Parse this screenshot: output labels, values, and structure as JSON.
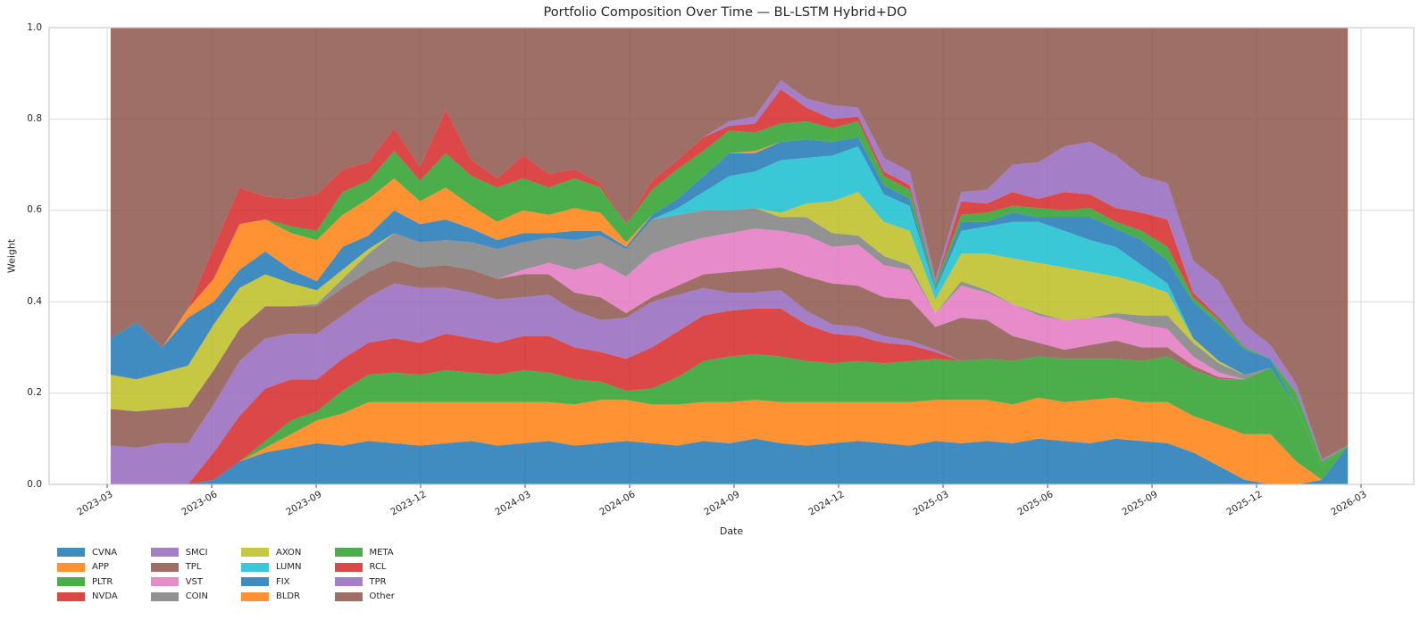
{
  "title": "Portfolio Composition Over Time — BL-LSTM Hybrid+DO",
  "axes": {
    "xlabel": "Date",
    "ylabel": "Weight",
    "y_ticks": [
      {
        "label": "0.0",
        "value": 0.0
      },
      {
        "label": "0.2",
        "value": 0.2
      },
      {
        "label": "0.4",
        "value": 0.4
      },
      {
        "label": "0.6",
        "value": 0.6
      },
      {
        "label": "0.8",
        "value": 0.8
      },
      {
        "label": "1.0",
        "value": 1.0
      }
    ],
    "x_ticks": [
      {
        "label": "2023-03",
        "month": 0
      },
      {
        "label": "2023-06",
        "month": 3
      },
      {
        "label": "2023-09",
        "month": 6
      },
      {
        "label": "2023-12",
        "month": 9
      },
      {
        "label": "2024-03",
        "month": 12
      },
      {
        "label": "2024-06",
        "month": 15
      },
      {
        "label": "2024-09",
        "month": 18
      },
      {
        "label": "2024-12",
        "month": 21
      },
      {
        "label": "2025-03",
        "month": 24
      },
      {
        "label": "2025-06",
        "month": 27
      },
      {
        "label": "2025-09",
        "month": 30
      },
      {
        "label": "2025-12",
        "month": 33
      },
      {
        "label": "2026-03",
        "month": 36
      }
    ],
    "grid_color": "#d9d9d9",
    "spine_color": "#cccccc",
    "text_color": "#262626"
  },
  "chart_data": {
    "type": "area",
    "stacked": true,
    "normalized_to_one": true,
    "ylim": [
      0,
      1
    ],
    "x_unit": "months since 2023-03",
    "fill_alpha": 0.85,
    "x": [
      0.1,
      0.84,
      1.58,
      2.32,
      3.06,
      3.8,
      4.54,
      5.28,
      6.02,
      6.76,
      7.5,
      8.24,
      8.98,
      9.72,
      10.46,
      11.2,
      11.94,
      12.68,
      13.42,
      14.16,
      14.9,
      15.64,
      16.38,
      17.12,
      17.86,
      18.6,
      19.34,
      20.08,
      20.82,
      21.56,
      22.3,
      23.04,
      23.78,
      24.52,
      25.26,
      26.0,
      26.74,
      27.48,
      28.22,
      28.96,
      29.7,
      30.44,
      31.18,
      31.92,
      32.66,
      33.4,
      34.14,
      34.88,
      35.62
    ],
    "series": [
      {
        "name": "CVNA",
        "color": "#1f77b4",
        "values": [
          0,
          0,
          0,
          0,
          0.01,
          0.05,
          0.07,
          0.08,
          0.09,
          0.085,
          0.095,
          0.09,
          0.085,
          0.09,
          0.095,
          0.085,
          0.09,
          0.095,
          0.085,
          0.09,
          0.095,
          0.09,
          0.085,
          0.095,
          0.09,
          0.1,
          0.09,
          0.085,
          0.09,
          0.095,
          0.09,
          0.085,
          0.095,
          0.09,
          0.095,
          0.09,
          0.1,
          0.095,
          0.09,
          0.1,
          0.095,
          0.09,
          0.07,
          0.04,
          0.01,
          0,
          0,
          0.01,
          0.085
        ]
      },
      {
        "name": "APP",
        "color": "#ff7f0e",
        "values": [
          0,
          0,
          0,
          0,
          0,
          0,
          0.01,
          0.03,
          0.05,
          0.07,
          0.085,
          0.09,
          0.095,
          0.09,
          0.085,
          0.095,
          0.09,
          0.085,
          0.09,
          0.095,
          0.09,
          0.085,
          0.09,
          0.085,
          0.09,
          0.085,
          0.09,
          0.095,
          0.09,
          0.085,
          0.09,
          0.095,
          0.09,
          0.095,
          0.09,
          0.085,
          0.09,
          0.085,
          0.095,
          0.09,
          0.085,
          0.09,
          0.08,
          0.09,
          0.1,
          0.11,
          0.05,
          0,
          0
        ]
      },
      {
        "name": "PLTR",
        "color": "#2ca02c",
        "values": [
          0,
          0,
          0,
          0,
          0,
          0,
          0.015,
          0.03,
          0.02,
          0.05,
          0.06,
          0.065,
          0.06,
          0.07,
          0.065,
          0.06,
          0.07,
          0.065,
          0.055,
          0.04,
          0.02,
          0.035,
          0.06,
          0.09,
          0.1,
          0.1,
          0.1,
          0.09,
          0.085,
          0.09,
          0.085,
          0.09,
          0.09,
          0.085,
          0.09,
          0.095,
          0.09,
          0.095,
          0.09,
          0.085,
          0.09,
          0.1,
          0.1,
          0.1,
          0.12,
          0.145,
          0.12,
          0.03,
          0
        ]
      },
      {
        "name": "NVDA",
        "color": "#d62728",
        "values": [
          0,
          0,
          0,
          0,
          0.06,
          0.1,
          0.115,
          0.09,
          0.07,
          0.07,
          0.07,
          0.075,
          0.07,
          0.08,
          0.075,
          0.07,
          0.075,
          0.08,
          0.07,
          0.065,
          0.07,
          0.09,
          0.1,
          0.1,
          0.1,
          0.1,
          0.105,
          0.08,
          0.065,
          0.055,
          0.045,
          0.035,
          0.015,
          0,
          0,
          0,
          0,
          0,
          0,
          0,
          0,
          0,
          0,
          0,
          0,
          0,
          0,
          0,
          0
        ]
      },
      {
        "name": "SMCI",
        "color": "#9467bd",
        "values": [
          0.085,
          0.08,
          0.09,
          0.09,
          0.105,
          0.12,
          0.11,
          0.1,
          0.1,
          0.095,
          0.1,
          0.12,
          0.12,
          0.1,
          0.1,
          0.095,
          0.085,
          0.09,
          0.08,
          0.07,
          0.09,
          0.1,
          0.08,
          0.06,
          0.04,
          0.035,
          0.04,
          0.03,
          0.02,
          0.02,
          0.015,
          0.01,
          0.005,
          0,
          0,
          0,
          0,
          0,
          0,
          0,
          0,
          0,
          0,
          0,
          0,
          0,
          0,
          0,
          0
        ]
      },
      {
        "name": "TPL",
        "color": "#8c564b",
        "values": [
          0.08,
          0.08,
          0.075,
          0.08,
          0.075,
          0.07,
          0.07,
          0.06,
          0.06,
          0.06,
          0.055,
          0.05,
          0.045,
          0.05,
          0.05,
          0.045,
          0.05,
          0.045,
          0.04,
          0.05,
          0.01,
          0.01,
          0.02,
          0.03,
          0.045,
          0.05,
          0.05,
          0.075,
          0.09,
          0.09,
          0.085,
          0.09,
          0.05,
          0.095,
          0.085,
          0.055,
          0.03,
          0.02,
          0.03,
          0.04,
          0.03,
          0.02,
          0.01,
          0.005,
          0,
          0,
          0,
          0,
          0
        ]
      },
      {
        "name": "VST",
        "color": "#e377c2",
        "values": [
          0,
          0,
          0,
          0,
          0,
          0,
          0,
          0,
          0,
          0,
          0,
          0,
          0,
          0,
          0,
          0,
          0.01,
          0.025,
          0.05,
          0.075,
          0.08,
          0.095,
          0.09,
          0.08,
          0.085,
          0.09,
          0.08,
          0.09,
          0.08,
          0.09,
          0.07,
          0.065,
          0.03,
          0.07,
          0.06,
          0.07,
          0.06,
          0.065,
          0.06,
          0.05,
          0.05,
          0.04,
          0.02,
          0.01,
          0,
          0,
          0,
          0,
          0
        ]
      },
      {
        "name": "COIN",
        "color": "#7f7f7f",
        "values": [
          0,
          0,
          0,
          0,
          0,
          0,
          0,
          0,
          0.005,
          0.02,
          0.04,
          0.06,
          0.055,
          0.055,
          0.06,
          0.065,
          0.06,
          0.055,
          0.065,
          0.06,
          0.06,
          0.075,
          0.065,
          0.06,
          0.05,
          0.045,
          0.03,
          0.04,
          0.03,
          0.02,
          0.02,
          0.01,
          0,
          0.01,
          0.005,
          0,
          0.005,
          0,
          0,
          0.01,
          0.02,
          0.03,
          0.03,
          0.02,
          0.01,
          0,
          0,
          0,
          0
        ]
      },
      {
        "name": "AXON",
        "color": "#bcbd22",
        "values": [
          0.075,
          0.07,
          0.08,
          0.09,
          0.1,
          0.09,
          0.07,
          0.05,
          0.03,
          0.02,
          0.01,
          0,
          0,
          0,
          0,
          0,
          0,
          0,
          0,
          0,
          0,
          0,
          0,
          0,
          0,
          0,
          0.01,
          0.03,
          0.07,
          0.095,
          0.075,
          0.075,
          0.03,
          0.06,
          0.08,
          0.1,
          0.11,
          0.115,
          0.1,
          0.08,
          0.07,
          0.05,
          0.01,
          0.005,
          0,
          0,
          0,
          0,
          0
        ]
      },
      {
        "name": "LUMN",
        "color": "#17becf",
        "values": [
          0,
          0,
          0,
          0,
          0,
          0,
          0,
          0,
          0,
          0,
          0,
          0,
          0,
          0,
          0,
          0,
          0,
          0,
          0,
          0,
          0,
          0,
          0.015,
          0.04,
          0.075,
          0.08,
          0.115,
          0.1,
          0.1,
          0.1,
          0.06,
          0.055,
          0.02,
          0.05,
          0.06,
          0.08,
          0.09,
          0.08,
          0.07,
          0.065,
          0.04,
          0.02,
          0,
          0,
          0,
          0,
          0,
          0,
          0
        ]
      },
      {
        "name": "FIX",
        "color": "#1f77b4",
        "values": [
          0.08,
          0.125,
          0.055,
          0.105,
          0.05,
          0.04,
          0.05,
          0.03,
          0.02,
          0.05,
          0.03,
          0.05,
          0.04,
          0.045,
          0.03,
          0.02,
          0.02,
          0.01,
          0.02,
          0.01,
          0.005,
          0.01,
          0.02,
          0.035,
          0.05,
          0.04,
          0.04,
          0.04,
          0.03,
          0.02,
          0.02,
          0.015,
          0.005,
          0.02,
          0.01,
          0.02,
          0.01,
          0.03,
          0.05,
          0.04,
          0.055,
          0.05,
          0.08,
          0.08,
          0.055,
          0.02,
          0,
          0,
          0
        ]
      },
      {
        "name": "BLDR",
        "color": "#ff7f0e",
        "values": [
          0,
          0,
          0,
          0.02,
          0.05,
          0.1,
          0.07,
          0.08,
          0.09,
          0.07,
          0.08,
          0.07,
          0.05,
          0.07,
          0.05,
          0.04,
          0.05,
          0.04,
          0.05,
          0.04,
          0.01,
          0,
          0,
          0,
          0,
          0.005,
          0,
          0,
          0,
          0,
          0,
          0,
          0,
          0,
          0,
          0,
          0,
          0,
          0,
          0,
          0,
          0,
          0,
          0,
          0,
          0,
          0,
          0,
          0
        ]
      },
      {
        "name": "META",
        "color": "#2ca02c",
        "values": [
          0,
          0,
          0,
          0,
          0,
          0,
          0,
          0.015,
          0.02,
          0.05,
          0.04,
          0.06,
          0.045,
          0.075,
          0.065,
          0.075,
          0.07,
          0.06,
          0.065,
          0.055,
          0.04,
          0.055,
          0.065,
          0.055,
          0.05,
          0.04,
          0.04,
          0.04,
          0.03,
          0.035,
          0.02,
          0.02,
          0.01,
          0.015,
          0.02,
          0.015,
          0.02,
          0.015,
          0.02,
          0.015,
          0.02,
          0.03,
          0.01,
          0.01,
          0.005,
          0,
          0.03,
          0.01,
          0
        ]
      },
      {
        "name": "RCL",
        "color": "#d62728",
        "values": [
          0,
          0,
          0,
          0,
          0.07,
          0.08,
          0.05,
          0.06,
          0.08,
          0.05,
          0.04,
          0.05,
          0.03,
          0.095,
          0.035,
          0.02,
          0.05,
          0.03,
          0.02,
          0.01,
          0,
          0.02,
          0.02,
          0.03,
          0.01,
          0.02,
          0.075,
          0.03,
          0.02,
          0.01,
          0.01,
          0.01,
          0,
          0.03,
          0.02,
          0.03,
          0.02,
          0.04,
          0.03,
          0.03,
          0.04,
          0.06,
          0.01,
          0.005,
          0,
          0,
          0,
          0,
          0
        ]
      },
      {
        "name": "TPR",
        "color": "#9467bd",
        "values": [
          0,
          0,
          0,
          0,
          0,
          0,
          0,
          0,
          0,
          0,
          0,
          0,
          0,
          0,
          0,
          0,
          0,
          0,
          0,
          0,
          0,
          0,
          0,
          0,
          0.01,
          0.015,
          0.02,
          0.02,
          0.03,
          0.02,
          0.03,
          0.03,
          0.01,
          0.02,
          0.03,
          0.06,
          0.08,
          0.1,
          0.115,
          0.115,
          0.08,
          0.08,
          0.07,
          0.08,
          0.05,
          0.03,
          0.02,
          0.005,
          0
        ]
      }
    ],
    "other_series": {
      "name": "Other",
      "color": "#8c564b",
      "is_remainder_to_1": true
    }
  },
  "legend": {
    "items": [
      {
        "label": "CVNA",
        "color": "#1f77b4"
      },
      {
        "label": "APP",
        "color": "#ff7f0e"
      },
      {
        "label": "PLTR",
        "color": "#2ca02c"
      },
      {
        "label": "NVDA",
        "color": "#d62728"
      },
      {
        "label": "SMCI",
        "color": "#9467bd"
      },
      {
        "label": "TPL",
        "color": "#8c564b"
      },
      {
        "label": "VST",
        "color": "#e377c2"
      },
      {
        "label": "COIN",
        "color": "#7f7f7f"
      },
      {
        "label": "AXON",
        "color": "#bcbd22"
      },
      {
        "label": "LUMN",
        "color": "#17becf"
      },
      {
        "label": "FIX",
        "color": "#1f77b4"
      },
      {
        "label": "BLDR",
        "color": "#ff7f0e"
      },
      {
        "label": "META",
        "color": "#2ca02c"
      },
      {
        "label": "RCL",
        "color": "#d62728"
      },
      {
        "label": "TPR",
        "color": "#9467bd"
      },
      {
        "label": "Other",
        "color": "#8c564b"
      }
    ]
  }
}
